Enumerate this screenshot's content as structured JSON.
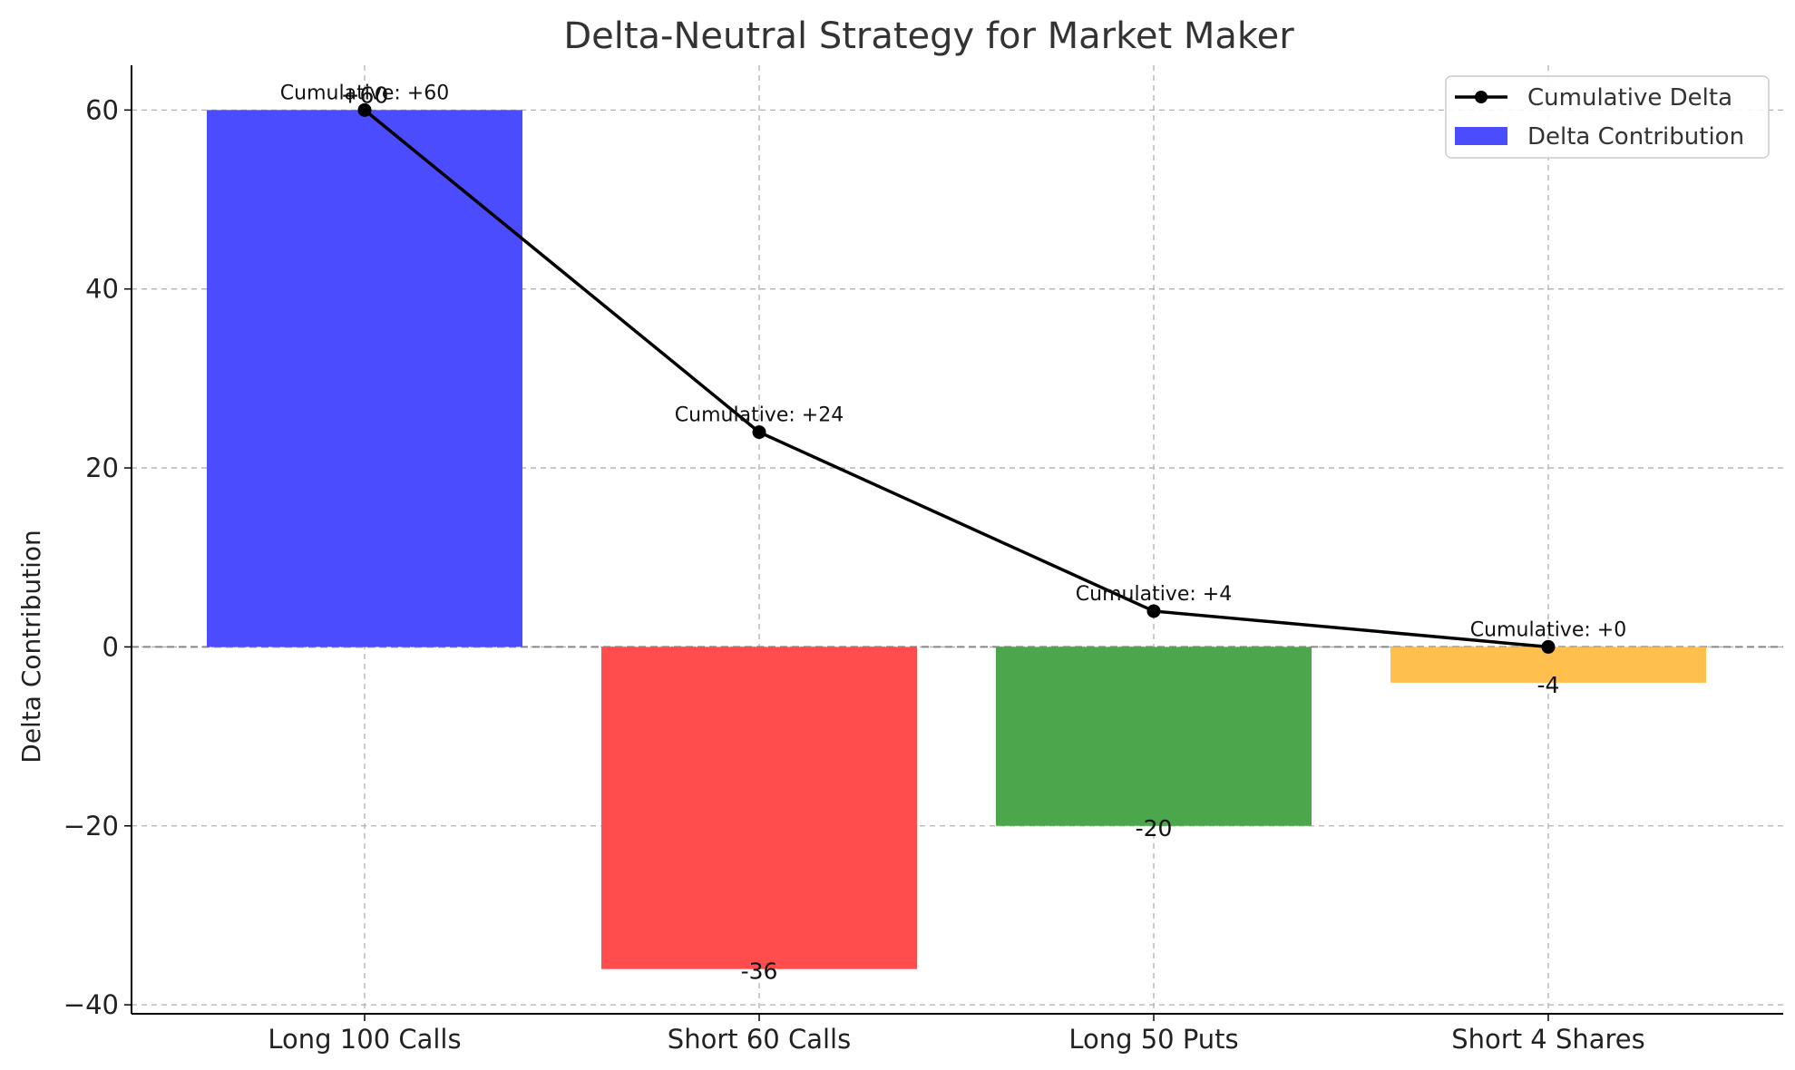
{
  "chart_data": {
    "type": "bar",
    "title": "Delta-Neutral Strategy for Market Maker",
    "xlabel": "",
    "ylabel": "Delta Contribution",
    "categories": [
      "Long 100 Calls",
      "Short 60 Calls",
      "Long 50 Puts",
      "Short 4 Shares"
    ],
    "ylim": [
      -41,
      65
    ],
    "yticks": [
      -40,
      -20,
      0,
      20,
      40,
      60
    ],
    "ytick_labels": [
      "−40",
      "−20",
      "0",
      "20",
      "40",
      "60"
    ],
    "grid": true,
    "legend_position": "top-right",
    "series": [
      {
        "name": "Delta Contribution",
        "kind": "bar",
        "values": [
          60,
          -36,
          -20,
          -4
        ],
        "colors": [
          "#4c4cff",
          "#ff4c4c",
          "#4ca64c",
          "#ffbf4c"
        ],
        "value_labels": [
          "+60",
          "-36",
          "-20",
          "-4"
        ]
      },
      {
        "name": "Cumulative Delta",
        "kind": "line",
        "values": [
          60,
          24,
          4,
          0
        ],
        "color": "#000000",
        "point_labels": [
          "Cumulative: +60",
          "Cumulative: +24",
          "Cumulative: +4",
          "Cumulative: +0"
        ]
      }
    ]
  }
}
